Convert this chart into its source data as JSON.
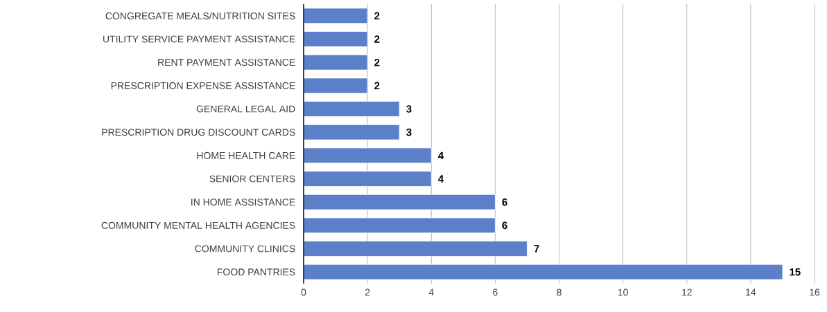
{
  "chart_data": {
    "type": "bar",
    "orientation": "horizontal",
    "categories": [
      "CONGREGATE MEALS/NUTRITION SITES",
      "UTILITY SERVICE PAYMENT ASSISTANCE",
      "RENT PAYMENT ASSISTANCE",
      "PRESCRIPTION EXPENSE ASSISTANCE",
      "GENERAL LEGAL AID",
      "PRESCRIPTION DRUG DISCOUNT CARDS",
      "HOME HEALTH CARE",
      "SENIOR CENTERS",
      "IN HOME ASSISTANCE",
      "COMMUNITY MENTAL HEALTH AGENCIES",
      "COMMUNITY CLINICS",
      "FOOD PANTRIES"
    ],
    "values": [
      2,
      2,
      2,
      2,
      3,
      3,
      4,
      4,
      6,
      6,
      7,
      15
    ],
    "color": "#5b7fc8",
    "xlim": [
      0,
      16
    ],
    "xticks": [
      0,
      2,
      4,
      6,
      8,
      10,
      12,
      14,
      16
    ],
    "grid": "x",
    "data_labels": true
  }
}
